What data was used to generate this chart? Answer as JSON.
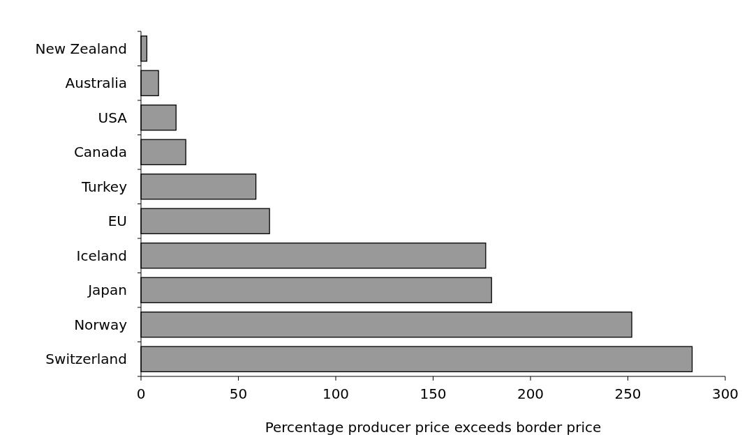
{
  "chart_data": {
    "type": "bar",
    "orientation": "horizontal",
    "xlabel": "Percentage producer price exceeds border price",
    "categories": [
      "New Zealand",
      "Australia",
      "USA",
      "Canada",
      "Turkey",
      "EU",
      "Iceland",
      "Japan",
      "Norway",
      "Switzerland"
    ],
    "values": [
      3,
      9,
      18,
      23,
      59,
      66,
      177,
      180,
      252,
      283
    ],
    "color": "#999999",
    "xlim": [
      0,
      300
    ],
    "xticks": [
      0,
      50,
      100,
      150,
      200,
      250,
      300
    ],
    "grid": false
  }
}
